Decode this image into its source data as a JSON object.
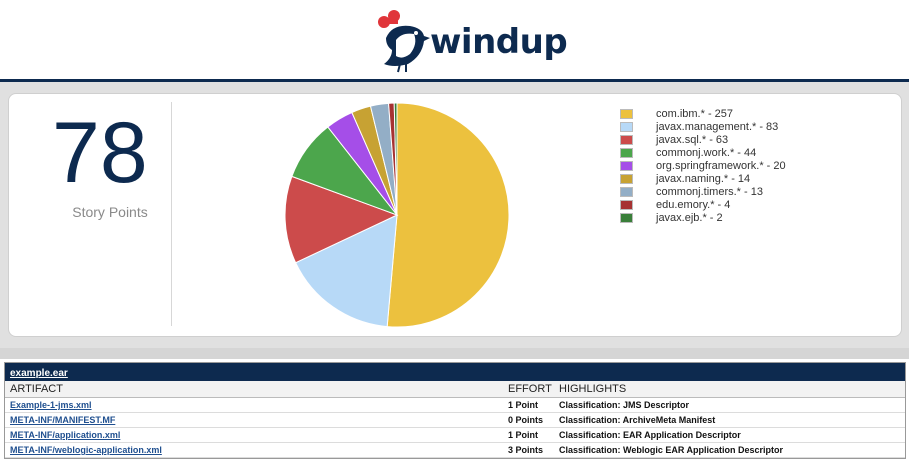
{
  "brand": {
    "name": "windup"
  },
  "summary": {
    "story_points_value": "78",
    "story_points_label": "Story Points"
  },
  "chart_data": {
    "type": "pie",
    "slices": [
      {
        "label": "com.ibm.*",
        "value": 257,
        "color": "#ecc13e"
      },
      {
        "label": "javax.management.*",
        "value": 83,
        "color": "#b7d9f7"
      },
      {
        "label": "javax.sql.*",
        "value": 63,
        "color": "#cc4b4b"
      },
      {
        "label": "commonj.work.*",
        "value": 44,
        "color": "#4ca64c"
      },
      {
        "label": "org.springframework.*",
        "value": 20,
        "color": "#a54ee8"
      },
      {
        "label": "javax.naming.*",
        "value": 14,
        "color": "#c7a233"
      },
      {
        "label": "commonj.timers.*",
        "value": 13,
        "color": "#93aec6"
      },
      {
        "label": "edu.emory.*",
        "value": 4,
        "color": "#a63232"
      },
      {
        "label": "javax.ejb.*",
        "value": 2,
        "color": "#3a7f3a"
      }
    ],
    "legend": [
      "com.ibm.* - 257",
      "javax.management.* - 83",
      "javax.sql.* - 63",
      "commonj.work.* - 44",
      "org.springframework.* - 20",
      "javax.naming.* - 14",
      "commonj.timers.* - 13",
      "edu.emory.* - 4",
      "javax.ejb.* - 2"
    ],
    "legend_position": "right"
  },
  "report": {
    "title": "example.ear",
    "headers": {
      "artifact": "ARTIFACT",
      "effort": "EFFORT",
      "highlights": "HIGHLIGHTS"
    },
    "rows": [
      {
        "artifact": "Example-1-jms.xml",
        "effort": "1 Point",
        "highlights": "Classification: JMS Descriptor"
      },
      {
        "artifact": "META-INF/MANIFEST.MF",
        "effort": "0 Points",
        "highlights": "Classification: ArchiveMeta Manifest"
      },
      {
        "artifact": "META-INF/application.xml",
        "effort": "1 Point",
        "highlights": "Classification: EAR Application Descriptor"
      },
      {
        "artifact": "META-INF/weblogic-application.xml",
        "effort": "3 Points",
        "highlights": "Classification: Weblogic EAR Application Descriptor"
      }
    ]
  }
}
